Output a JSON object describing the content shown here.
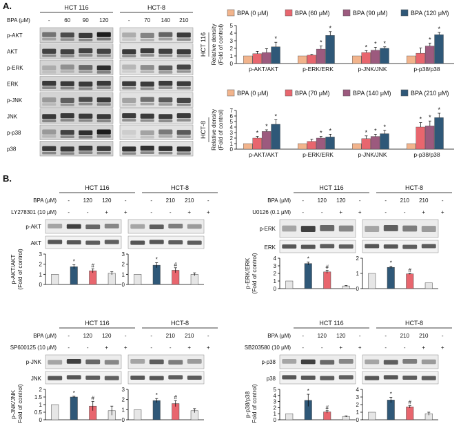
{
  "figure": {
    "panel_a_label": "A.",
    "panel_b_label": "B."
  },
  "panel_a": {
    "blot": {
      "header_left": "HCT 116",
      "header_right": "HCT-8",
      "conc_row_label": "BPA (μM)",
      "lanes_left": [
        "-",
        "60",
        "90",
        "120"
      ],
      "lanes_right": [
        "-",
        "70",
        "140",
        "210"
      ],
      "rows": [
        "p-AKT",
        "AKT",
        "p-ERK",
        "ERK",
        "p-JNK",
        "JNK",
        "p-p38",
        "p38"
      ]
    }
  },
  "panel_b": {
    "sub": [
      {
        "id": "akt",
        "left_header": "HCT 116",
        "right_header": "HCT-8",
        "conc_label": "BPA (μM)",
        "inhibitor_label": "LY278301 (10 μM)",
        "left_conc": [
          "-",
          "120",
          "120",
          "-"
        ],
        "right_conc": [
          "-",
          "210",
          "210",
          "-"
        ],
        "inhibitor": [
          "-",
          "-",
          "+",
          "+"
        ],
        "phospho": "p-AKT",
        "total": "AKT",
        "ylabel_1": "p-AKT/AKT",
        "ylabel_2": "(Fold of control)"
      },
      {
        "id": "erk",
        "left_header": "HCT 116",
        "right_header": "HCT-8",
        "conc_label": "BPA (μM)",
        "inhibitor_label": "U0126 (0.1 μM)",
        "left_conc": [
          "-",
          "120",
          "120",
          "-"
        ],
        "right_conc": [
          "-",
          "210",
          "210",
          "-"
        ],
        "inhibitor": [
          "-",
          "-",
          "+",
          "+"
        ],
        "phospho": "p-ERK",
        "total": "ERK",
        "ylabel_1": "p-ERK/ERK",
        "ylabel_2": "(Fold of control)"
      },
      {
        "id": "jnk",
        "left_header": "HCT 116",
        "right_header": "HCT-8",
        "conc_label": "BPA (μM)",
        "inhibitor_label": "SP600125 (10 μM)",
        "left_conc": [
          "-",
          "120",
          "120",
          "-"
        ],
        "right_conc": [
          "-",
          "210",
          "210",
          "-"
        ],
        "inhibitor": [
          "-",
          "-",
          "+",
          "+"
        ],
        "phospho": "p-JNK",
        "total": "JNK",
        "ylabel_1": "p-JNK/JNK",
        "ylabel_2": "(Fold of control)"
      },
      {
        "id": "p38",
        "left_header": "HCT 116",
        "right_header": "HCT-8",
        "conc_label": "BPA (μM)",
        "inhibitor_label": "SB203580 (10 μM)",
        "left_conc": [
          "-",
          "120",
          "120",
          "-"
        ],
        "right_conc": [
          "-",
          "210",
          "210",
          "-"
        ],
        "inhibitor": [
          "-",
          "-",
          "+",
          "+"
        ],
        "phospho": "p-p38",
        "total": "p38",
        "ylabel_1": "p-p38/p38",
        "ylabel_2": "(Fold of control)"
      }
    ]
  },
  "colors": {
    "c0": "#F2B48C",
    "c1": "#E8666E",
    "c2": "#9C5A7E",
    "c3": "#2F5878",
    "ctrl": "#E6E6E6",
    "axis": "#000000"
  },
  "chart_data": [
    {
      "type": "bar",
      "title": "",
      "side_label": "HCT 116",
      "ylabel": "Relative density (Fold of control)",
      "ylim": [
        0,
        5
      ],
      "yticks": [
        0,
        1,
        2,
        3,
        4,
        5
      ],
      "categories": [
        "p-AKT/AKT",
        "p-ERK/ERK",
        "p-JNK/JNK",
        "p-p38/p38"
      ],
      "series": [
        {
          "name": "BPA (0 μM)",
          "values": [
            1,
            1,
            1,
            1
          ],
          "errors": [
            0,
            0,
            0,
            0
          ],
          "sig": [
            "",
            "",
            "",
            ""
          ]
        },
        {
          "name": "BPA (60 μM)",
          "values": [
            1.3,
            1.1,
            1.45,
            1.35
          ],
          "errors": [
            0.3,
            0.1,
            0.25,
            0.7
          ],
          "sig": [
            "",
            "",
            "*",
            ""
          ]
        },
        {
          "name": "BPA (90 μM)",
          "values": [
            1.45,
            1.9,
            1.75,
            2.3
          ],
          "errors": [
            0.5,
            0.4,
            0.4,
            0.4
          ],
          "sig": [
            "",
            "*",
            "*",
            "*"
          ]
        },
        {
          "name": "BPA (120 μM)",
          "values": [
            2.2,
            3.7,
            2.0,
            3.8
          ],
          "errors": [
            0.6,
            0.5,
            0.2,
            0.3
          ],
          "sig": [
            "*",
            "*",
            "*",
            "*"
          ]
        }
      ]
    },
    {
      "type": "bar",
      "title": "",
      "side_label": "HCT-8",
      "ylabel": "Relative density (Fold of control)",
      "ylim": [
        0,
        7
      ],
      "yticks": [
        0,
        1,
        2,
        3,
        4,
        5,
        6,
        7
      ],
      "categories": [
        "p-AKT/AKT",
        "p-ERK/ERK",
        "p-JNK/JNK",
        "p-p38/p38"
      ],
      "series": [
        {
          "name": "BPA (0 μM)",
          "values": [
            1,
            1,
            1,
            1
          ],
          "errors": [
            0,
            0,
            0,
            0
          ],
          "sig": [
            "",
            "",
            "",
            ""
          ]
        },
        {
          "name": "BPA (70 μM)",
          "values": [
            2.0,
            1.4,
            1.9,
            4.0
          ],
          "errors": [
            0.3,
            0.4,
            0.5,
            0.8
          ],
          "sig": [
            "*",
            "",
            "*",
            "*"
          ]
        },
        {
          "name": "BPA (140 μM)",
          "values": [
            3.2,
            2.0,
            2.3,
            4.2
          ],
          "errors": [
            0.3,
            0.3,
            0.4,
            0.9
          ],
          "sig": [
            "*",
            "*",
            "*",
            "*"
          ]
        },
        {
          "name": "BPA (210 μM)",
          "values": [
            4.5,
            2.2,
            2.8,
            5.7
          ],
          "errors": [
            0.8,
            0.5,
            0.6,
            0.8
          ],
          "sig": [
            "*",
            "*",
            "*",
            "*"
          ]
        }
      ]
    },
    {
      "type": "bar",
      "panel": "akt",
      "cell": "HCT 116",
      "ylim": [
        0,
        3
      ],
      "yticks": [
        0,
        1,
        2,
        3
      ],
      "values": [
        1,
        1.75,
        1.35,
        1.1
      ],
      "errors": [
        0,
        0.2,
        0.2,
        0.15
      ],
      "sig": [
        "",
        "*",
        "#",
        ""
      ]
    },
    {
      "type": "bar",
      "panel": "akt",
      "cell": "HCT-8",
      "ylim": [
        0,
        3
      ],
      "yticks": [
        0,
        1,
        2,
        3
      ],
      "values": [
        1,
        1.9,
        1.4,
        1.0
      ],
      "errors": [
        0,
        0.25,
        0.25,
        0.15
      ],
      "sig": [
        "",
        "*",
        "#",
        ""
      ]
    },
    {
      "type": "bar",
      "panel": "erk",
      "cell": "HCT 116",
      "ylim": [
        0,
        4
      ],
      "yticks": [
        0,
        1,
        2,
        3,
        4
      ],
      "values": [
        1,
        3.3,
        2.2,
        0.35
      ],
      "errors": [
        0,
        0.2,
        0.2,
        0.05
      ],
      "sig": [
        "",
        "*",
        "#",
        ""
      ]
    },
    {
      "type": "bar",
      "panel": "erk",
      "cell": "HCT-8",
      "ylim": [
        0,
        2
      ],
      "yticks": [
        0,
        1,
        2
      ],
      "values": [
        1,
        1.4,
        0.97,
        0.38
      ],
      "errors": [
        0,
        0.08,
        0.03,
        0
      ],
      "sig": [
        "",
        "*",
        "#",
        ""
      ]
    },
    {
      "type": "bar",
      "panel": "jnk",
      "cell": "HCT 116",
      "ylim": [
        0,
        2
      ],
      "yticks": [
        0,
        0.5,
        1,
        1.5,
        2
      ],
      "values": [
        1,
        1.5,
        0.9,
        0.6
      ],
      "errors": [
        0,
        0.05,
        0.3,
        0.3
      ],
      "sig": [
        "",
        "*",
        "#",
        ""
      ]
    },
    {
      "type": "bar",
      "panel": "jnk",
      "cell": "HCT-8",
      "ylim": [
        0,
        3
      ],
      "yticks": [
        0,
        1,
        2,
        3
      ],
      "values": [
        1,
        1.9,
        1.6,
        0.9
      ],
      "errors": [
        0,
        0.2,
        0.3,
        0.2
      ],
      "sig": [
        "",
        "*",
        "#",
        ""
      ]
    },
    {
      "type": "bar",
      "panel": "p38",
      "cell": "HCT 116",
      "ylim": [
        0,
        5
      ],
      "yticks": [
        0,
        1,
        2,
        3,
        4,
        5
      ],
      "values": [
        1,
        3.2,
        1.3,
        0.55
      ],
      "errors": [
        0,
        1.0,
        0.2,
        0.1
      ],
      "sig": [
        "",
        "*",
        "#",
        ""
      ]
    },
    {
      "type": "bar",
      "panel": "p38",
      "cell": "HCT-8",
      "ylim": [
        0,
        4
      ],
      "yticks": [
        0,
        1,
        2,
        3,
        4
      ],
      "values": [
        1,
        2.6,
        1.7,
        0.8
      ],
      "errors": [
        0,
        0.35,
        0.15,
        0.2
      ],
      "sig": [
        "",
        "*",
        "#",
        ""
      ]
    }
  ]
}
